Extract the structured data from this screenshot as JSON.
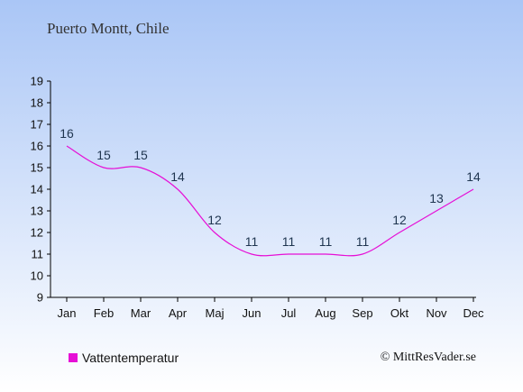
{
  "header": {
    "title": "Puerto Montt, Chile"
  },
  "legend": {
    "label": "Vattentemperatur"
  },
  "footer": {
    "copyright": "© MittResVader.se"
  },
  "colors": {
    "background_top": "#aac6f6",
    "background_bottom": "#ffffff",
    "series": "#e60fd6",
    "label": "#1f3550"
  },
  "chart_data": {
    "type": "line",
    "categories": [
      "Jan",
      "Feb",
      "Mar",
      "Apr",
      "Maj",
      "Jun",
      "Jul",
      "Aug",
      "Sep",
      "Okt",
      "Nov",
      "Dec"
    ],
    "series": [
      {
        "name": "Vattentemperatur",
        "values": [
          16,
          15,
          15,
          14,
          12,
          11,
          11,
          11,
          11,
          12,
          13,
          14
        ]
      }
    ],
    "title": "Puerto Montt, Chile",
    "xlabel": "",
    "ylabel": "",
    "ylim": [
      9,
      19
    ],
    "yticks": [
      9,
      10,
      11,
      12,
      13,
      14,
      15,
      16,
      17,
      18,
      19
    ],
    "data_labels": true,
    "grid": false,
    "legend_position": "bottom-left"
  }
}
